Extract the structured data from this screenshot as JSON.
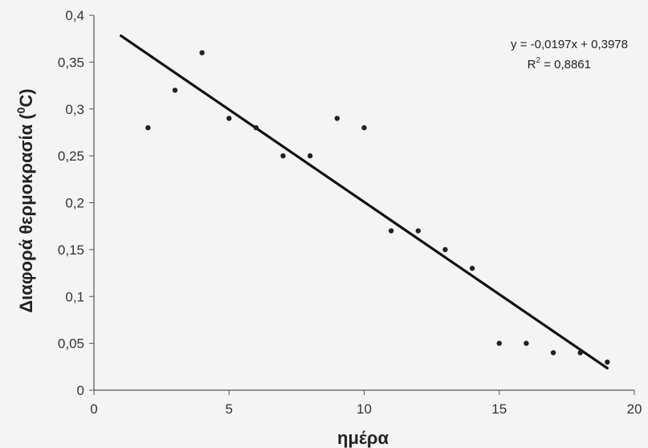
{
  "chart_data": {
    "type": "scatter",
    "title": "",
    "xlabel": "ημέρα",
    "ylabel_main": "Διαφορά θερμοκρασία (",
    "ylabel_sup": "0",
    "ylabel_tail": "C)",
    "xlim": [
      0,
      20
    ],
    "ylim": [
      0,
      0.4
    ],
    "x_ticks": [
      0,
      5,
      10,
      15,
      20
    ],
    "x_tick_labels": [
      "0",
      "5",
      "10",
      "15",
      "20"
    ],
    "y_ticks": [
      0,
      0.05,
      0.1,
      0.15,
      0.2,
      0.25,
      0.3,
      0.35,
      0.4
    ],
    "y_tick_labels": [
      "0",
      "0,05",
      "0,1",
      "0,15",
      "0,2",
      "0,25",
      "0,3",
      "0,35",
      "0,4"
    ],
    "grid": false,
    "series": [
      {
        "x": [
          2,
          3,
          4,
          5,
          6,
          7,
          8,
          9,
          10,
          11,
          12,
          13,
          14,
          15,
          16,
          17,
          18,
          19
        ],
        "y": [
          0.28,
          0.32,
          0.36,
          0.29,
          0.28,
          0.25,
          0.25,
          0.29,
          0.28,
          0.17,
          0.17,
          0.15,
          0.13,
          0.05,
          0.05,
          0.04,
          0.04,
          0.03
        ]
      }
    ],
    "trendline": {
      "slope": -0.0197,
      "intercept": 0.3978,
      "x_range": [
        1,
        19
      ]
    },
    "equation_text": "y = -0,0197x + 0,3978",
    "r2_prefix": "R",
    "r2_sup": "2",
    "r2_tail": " = 0,8861",
    "colors": {
      "points": "#222222",
      "trendline": "#111111",
      "axes": "#555555",
      "background": "#f4f4f4"
    }
  }
}
